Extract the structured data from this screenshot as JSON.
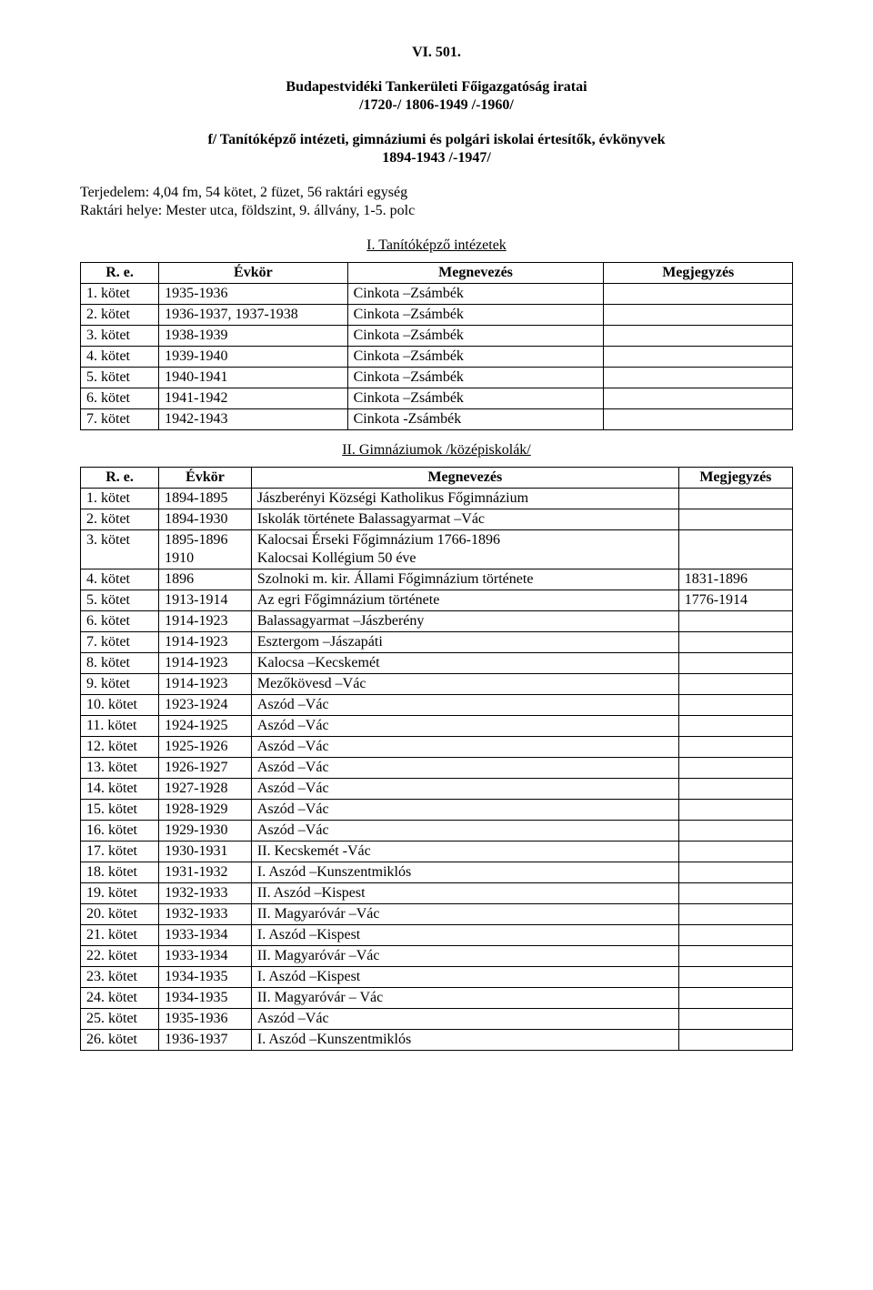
{
  "doc_id": "VI. 501.",
  "title": "Budapestvidéki Tankerületi Főigazgatóság iratai",
  "date_range": "/1720-/ 1806-1949 /-1960/",
  "sub_title": "f/ Tanítóképző intézeti, gimnáziumi és polgári iskolai értesítők, évkönyvek",
  "sub_date_range": "1894-1943 /-1947/",
  "extent_line1": "Terjedelem: 4,04 fm, 54 kötet, 2 füzet, 56 raktári egység",
  "extent_line2": "Raktári helye: Mester utca, földszint, 9. állvány, 1-5. polc",
  "section1_title": "I. Tanítóképző intézetek",
  "section2_title": "II. Gimnáziumok /középiskolák/",
  "headers": {
    "re": "R. e.",
    "year": "Évkör",
    "name": "Megnevezés",
    "note": "Megjegyzés"
  },
  "table1": [
    {
      "re": "1. kötet",
      "yr": "1935-1936",
      "name": "Cinkota –Zsámbék",
      "note": ""
    },
    {
      "re": "2. kötet",
      "yr": "1936-1937, 1937-1938",
      "name": "Cinkota –Zsámbék",
      "note": ""
    },
    {
      "re": "3. kötet",
      "yr": "1938-1939",
      "name": "Cinkota –Zsámbék",
      "note": ""
    },
    {
      "re": "4. kötet",
      "yr": "1939-1940",
      "name": "Cinkota –Zsámbék",
      "note": ""
    },
    {
      "re": "5. kötet",
      "yr": "1940-1941",
      "name": "Cinkota –Zsámbék",
      "note": ""
    },
    {
      "re": "6. kötet",
      "yr": "1941-1942",
      "name": "Cinkota –Zsámbék",
      "note": ""
    },
    {
      "re": "7. kötet",
      "yr": "1942-1943",
      "name": "Cinkota -Zsámbék",
      "note": ""
    }
  ],
  "table2": [
    {
      "re": "1. kötet",
      "yr": "1894-1895",
      "name": "Jászberényi Községi Katholikus Főgimnázium",
      "note": ""
    },
    {
      "re": "2. kötet",
      "yr": "1894-1930",
      "name": "Iskolák története Balassagyarmat –Vác",
      "note": ""
    },
    {
      "re": "3. kötet",
      "yr": "1895-1896\n1910",
      "name": "Kalocsai Érseki Főgimnázium 1766-1896\nKalocsai Kollégium 50 éve",
      "note": ""
    },
    {
      "re": "4. kötet",
      "yr": "1896",
      "name": "Szolnoki m. kir. Állami Főgimnázium története",
      "note": "1831-1896"
    },
    {
      "re": "5. kötet",
      "yr": "1913-1914",
      "name": "Az egri Főgimnázium története",
      "note": "1776-1914"
    },
    {
      "re": "6. kötet",
      "yr": "1914-1923",
      "name": "Balassagyarmat –Jászberény",
      "note": ""
    },
    {
      "re": "7. kötet",
      "yr": "1914-1923",
      "name": "Esztergom –Jászapáti",
      "note": ""
    },
    {
      "re": "8. kötet",
      "yr": "1914-1923",
      "name": "Kalocsa –Kecskemét",
      "note": ""
    },
    {
      "re": "9. kötet",
      "yr": "1914-1923",
      "name": "Mezőkövesd –Vác",
      "note": ""
    },
    {
      "re": "10. kötet",
      "yr": "1923-1924",
      "name": "Aszód –Vác",
      "note": ""
    },
    {
      "re": "11. kötet",
      "yr": "1924-1925",
      "name": "Aszód –Vác",
      "note": ""
    },
    {
      "re": "12. kötet",
      "yr": "1925-1926",
      "name": "Aszód –Vác",
      "note": ""
    },
    {
      "re": "13. kötet",
      "yr": "1926-1927",
      "name": "Aszód –Vác",
      "note": ""
    },
    {
      "re": "14. kötet",
      "yr": "1927-1928",
      "name": "Aszód –Vác",
      "note": ""
    },
    {
      "re": "15. kötet",
      "yr": "1928-1929",
      "name": "Aszód –Vác",
      "note": ""
    },
    {
      "re": "16. kötet",
      "yr": "1929-1930",
      "name": "Aszód –Vác",
      "note": ""
    },
    {
      "re": "17. kötet",
      "yr": "1930-1931",
      "name": "II. Kecskemét -Vác",
      "note": ""
    },
    {
      "re": "18. kötet",
      "yr": "1931-1932",
      "name": "I. Aszód –Kunszentmiklós",
      "note": ""
    },
    {
      "re": "19. kötet",
      "yr": "1932-1933",
      "name": "II. Aszód –Kispest",
      "note": ""
    },
    {
      "re": "20. kötet",
      "yr": "1932-1933",
      "name": "II. Magyaróvár –Vác",
      "note": ""
    },
    {
      "re": "21. kötet",
      "yr": "1933-1934",
      "name": "I. Aszód –Kispest",
      "note": ""
    },
    {
      "re": "22. kötet",
      "yr": "1933-1934",
      "name": "II. Magyaróvár –Vác",
      "note": ""
    },
    {
      "re": "23. kötet",
      "yr": "1934-1935",
      "name": "I. Aszód –Kispest",
      "note": ""
    },
    {
      "re": "24. kötet",
      "yr": "1934-1935",
      "name": "II. Magyaróvár – Vác",
      "note": ""
    },
    {
      "re": "25. kötet",
      "yr": "1935-1936",
      "name": "Aszód –Vác",
      "note": ""
    },
    {
      "re": "26. kötet",
      "yr": "1936-1937",
      "name": "I. Aszód –Kunszentmiklós",
      "note": ""
    }
  ]
}
